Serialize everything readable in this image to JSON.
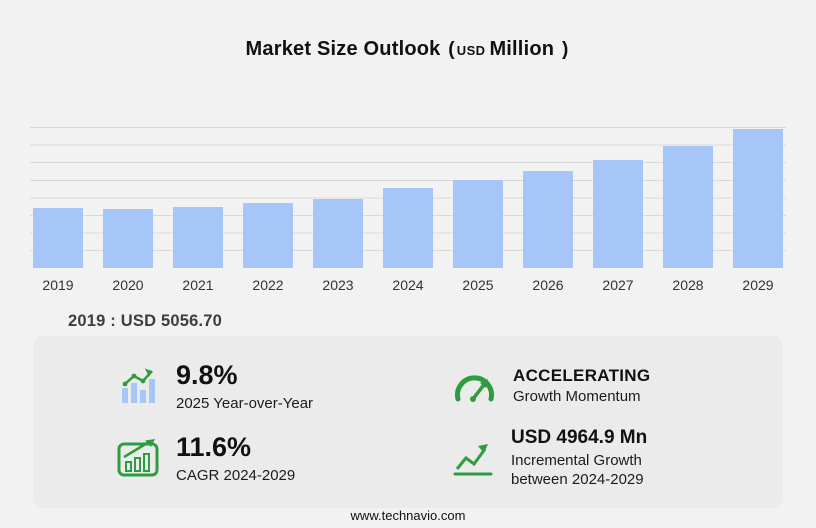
{
  "title": {
    "main": "Market Size Outlook",
    "paren_open": "(",
    "unit_small": "USD",
    "unit_large": "Million",
    "paren_close": ")"
  },
  "chart_data": {
    "type": "bar",
    "title": "Market Size Outlook (USD Million)",
    "categories": [
      "2019",
      "2020",
      "2021",
      "2022",
      "2023",
      "2024",
      "2025",
      "2026",
      "2027",
      "2028",
      "2029"
    ],
    "values": [
      5056.7,
      4990,
      5180,
      5480,
      5860,
      6795.1,
      7461,
      8230,
      9150,
      10320,
      11760
    ],
    "ylabel": "USD Million",
    "xlabel": "",
    "ylim": [
      0,
      11900
    ],
    "grid": true,
    "legend": false,
    "bar_color": "#a6c6f7"
  },
  "base_year_annotation": {
    "text": "2019 : USD  5056.70"
  },
  "stats": {
    "yoy": {
      "value": "9.8%",
      "label": "2025 Year-over-Year"
    },
    "momentum": {
      "value": "ACCELERATING",
      "label": "Growth Momentum"
    },
    "cagr": {
      "value": "11.6%",
      "label": "CAGR 2024-2029"
    },
    "incremental": {
      "value": "USD 4964.9 Mn",
      "label": "Incremental Growth between 2024-2029"
    }
  },
  "footer": {
    "url": "www.technavio.com"
  },
  "colors": {
    "background": "#f2f2f2",
    "panel": "#ebebeb",
    "bar": "#a6c6f7",
    "grid": "#d9d9d9",
    "green": "#2e9c3f",
    "text": "#111111"
  }
}
